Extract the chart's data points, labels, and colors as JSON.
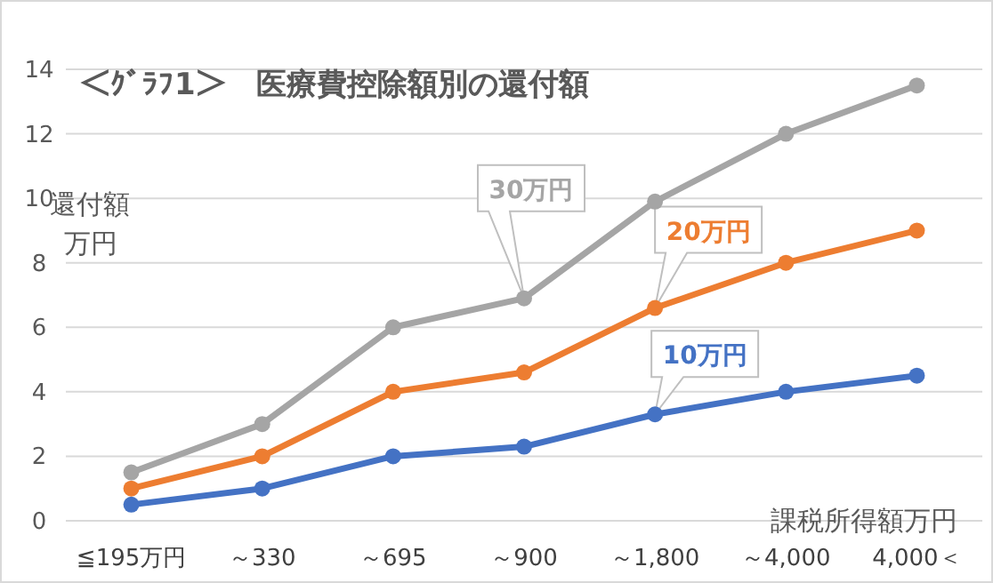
{
  "chart_data": {
    "type": "line",
    "title": "＜ｸﾞﾗﾌ1＞　医療費控除額別の還付額",
    "ylabel": "還付額万円",
    "xlabel": "課税所得額万円",
    "categories": [
      "≦195万円",
      "～330",
      "～695",
      "～900",
      "～1,800",
      "～4,000",
      "4,000＜"
    ],
    "series": [
      {
        "name": "10万円",
        "color": "#4472c4",
        "values": [
          0.5,
          1,
          2,
          2.3,
          3.3,
          4,
          4.5
        ]
      },
      {
        "name": "20万円",
        "color": "#ed7d31",
        "values": [
          1,
          2,
          4,
          4.6,
          6.6,
          8,
          9
        ]
      },
      {
        "name": "30万円",
        "color": "#a5a5a5",
        "values": [
          1.5,
          3,
          6,
          6.9,
          9.9,
          12,
          13.5
        ]
      }
    ],
    "ylim": [
      0,
      14
    ],
    "yticks": [
      0,
      2,
      4,
      6,
      8,
      10,
      12,
      14
    ],
    "grid": "y",
    "marker": "circle",
    "line_style": "solid"
  }
}
